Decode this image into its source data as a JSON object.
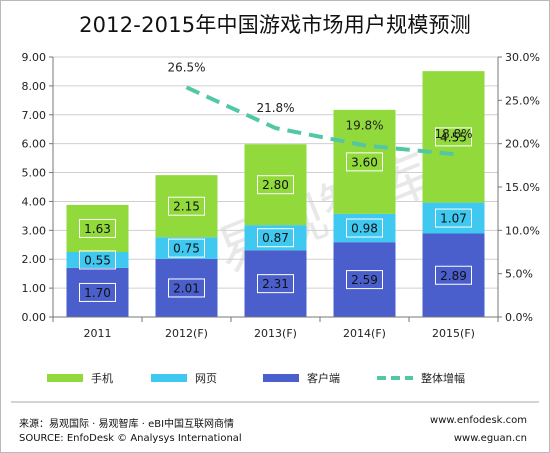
{
  "title": "2012-2015年中国游戏市场用户规模预测",
  "chart_data": {
    "type": "bar",
    "stacked": true,
    "categories": [
      "2011",
      "2012(F)",
      "2013(F)",
      "2014(F)",
      "2015(F)"
    ],
    "series": [
      {
        "name": "客户端",
        "values": [
          1.7,
          2.01,
          2.31,
          2.59,
          2.89
        ],
        "color": "#4a5fcc"
      },
      {
        "name": "网页",
        "values": [
          0.55,
          0.75,
          0.87,
          0.98,
          1.07
        ],
        "color": "#3fc8f0"
      },
      {
        "name": "手机",
        "values": [
          1.63,
          2.15,
          2.8,
          3.6,
          4.55
        ],
        "color": "#92d93c"
      }
    ],
    "line_series": {
      "name": "整体增幅",
      "categories": [
        "2012(F)",
        "2013(F)",
        "2014(F)",
        "2015(F)"
      ],
      "values": [
        26.5,
        21.8,
        19.8,
        18.8
      ],
      "labels": [
        "26.5%",
        "21.8%",
        "19.8%",
        "18.8%"
      ],
      "color": "#52c7a5",
      "axis": "right"
    },
    "y_left": {
      "ylim": [
        0,
        9
      ],
      "ticks": [
        "0.00",
        "1.00",
        "2.00",
        "3.00",
        "4.00",
        "5.00",
        "6.00",
        "7.00",
        "8.00",
        "9.00"
      ]
    },
    "y_right": {
      "ylim": [
        0,
        30
      ],
      "ticks": [
        "0.0%",
        "5.0%",
        "10.0%",
        "15.0%",
        "20.0%",
        "25.0%",
        "30.0%"
      ]
    },
    "legend": {
      "placement": "bottom",
      "order": [
        "手机",
        "网页",
        "客户端",
        "整体增幅"
      ]
    },
    "grid": true,
    "watermark": "易观智库"
  },
  "footer": {
    "source_cn": "来源：易观国际 · 易观智库 · eBI中国互联网商情",
    "source_en": "SOURCE: EnfoDesk © Analysys International",
    "url1": "www.enfodesk.com",
    "url2": "www.eguan.cn"
  }
}
